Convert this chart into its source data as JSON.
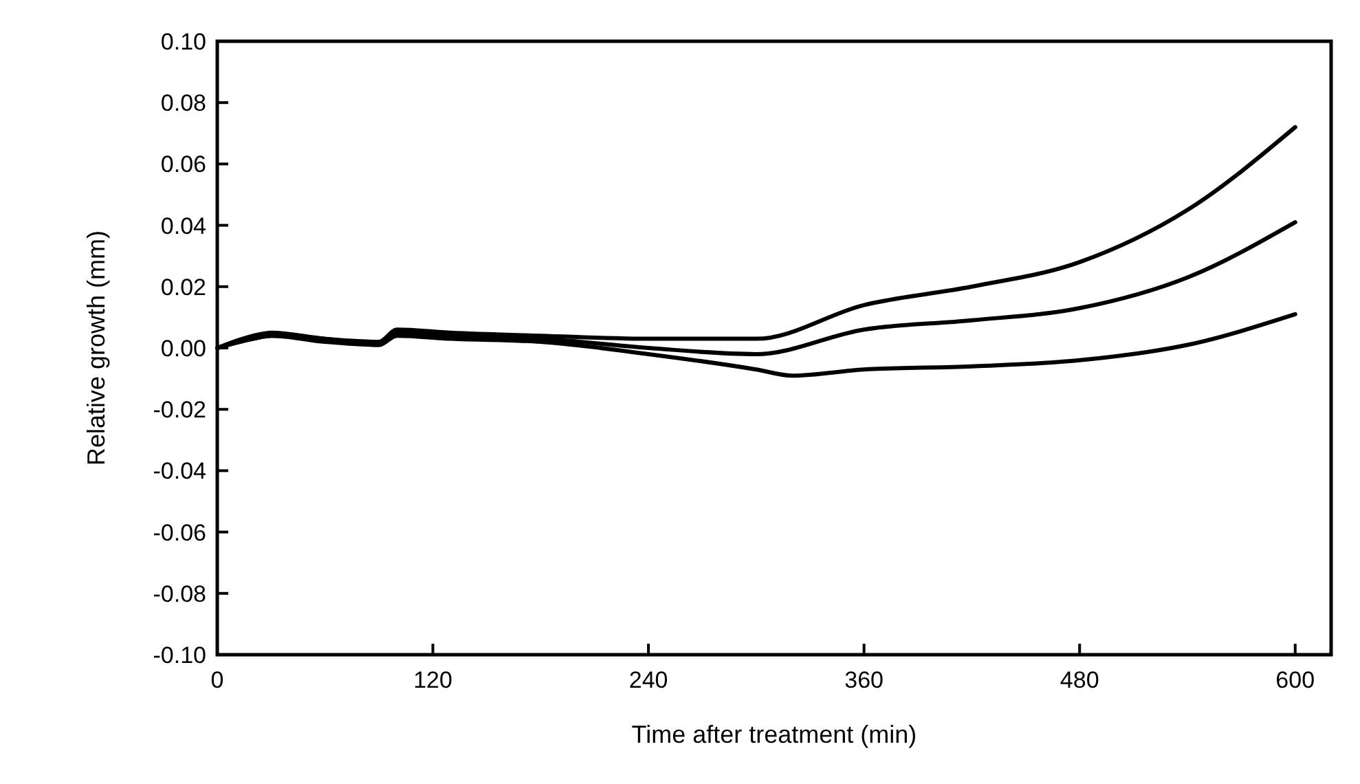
{
  "chart_data": {
    "type": "line",
    "xlabel": "Time after treatment (min)",
    "ylabel": "Relative growth (mm)",
    "xlim": [
      0,
      620
    ],
    "ylim": [
      -0.1,
      0.1
    ],
    "xticks": [
      0,
      120,
      240,
      360,
      480,
      600
    ],
    "yticks": [
      {
        "value": 0.1,
        "label": "0.10"
      },
      {
        "value": 0.08,
        "label": "0.08"
      },
      {
        "value": 0.06,
        "label": "0.06"
      },
      {
        "value": 0.04,
        "label": "0.04"
      },
      {
        "value": 0.02,
        "label": "0.02"
      },
      {
        "value": 0,
        "label": "0.00"
      },
      {
        "value": -0.02,
        "label": "-0.02"
      },
      {
        "value": -0.04,
        "label": "-0.04"
      },
      {
        "value": -0.06,
        "label": "-0.06"
      },
      {
        "value": -0.08,
        "label": "-0.08"
      },
      {
        "value": -0.1,
        "label": "-0.10"
      }
    ],
    "grid": false,
    "marker": "none",
    "line_style": "solid",
    "series": [
      {
        "color": "#000000",
        "x": [
          0,
          20,
          30,
          60,
          90,
          100,
          130,
          180,
          240,
          300,
          360,
          420,
          480,
          540,
          600
        ],
        "values": [
          0,
          0.004,
          0.005,
          0.003,
          0.002,
          0.006,
          0.005,
          0.004,
          0.003,
          0.003,
          0.014,
          0.02,
          0.028,
          0.045,
          0.072
        ]
      },
      {
        "color": "#000000",
        "x": [
          0,
          20,
          30,
          60,
          90,
          100,
          130,
          180,
          240,
          300,
          360,
          420,
          480,
          540,
          600
        ],
        "values": [
          0,
          0.003,
          0.004,
          0.003,
          0.001,
          0.005,
          0.004,
          0.003,
          0,
          -0.002,
          0.006,
          0.009,
          0.013,
          0.023,
          0.041
        ]
      },
      {
        "color": "#000000",
        "x": [
          0,
          20,
          30,
          60,
          90,
          100,
          130,
          180,
          240,
          300,
          320,
          360,
          420,
          480,
          540,
          600
        ],
        "values": [
          0,
          0.003,
          0.004,
          0.002,
          0.001,
          0.004,
          0.003,
          0.002,
          -0.002,
          -0.007,
          -0.009,
          -0.007,
          -0.006,
          -0.004,
          0.001,
          0.011
        ]
      }
    ]
  }
}
